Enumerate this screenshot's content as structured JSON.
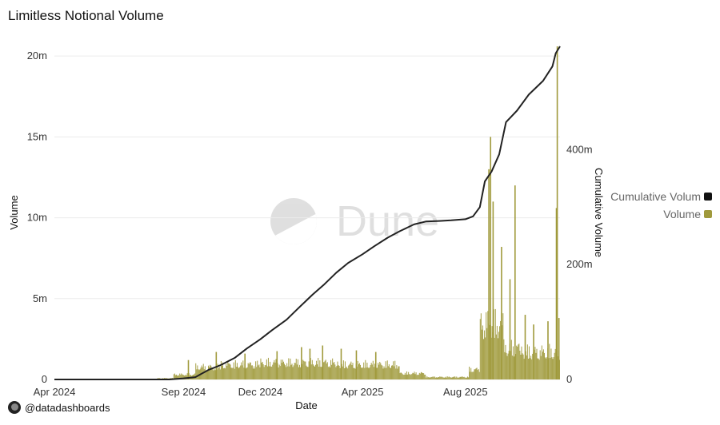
{
  "title": "Limitless Notional Volume",
  "credit": "@datadashboards",
  "watermark": "Dune",
  "colors": {
    "volume": "#a09a3c",
    "cumulative": "#222222",
    "grid": "#ececec"
  },
  "legend": [
    {
      "label": "Cumulative Volum",
      "color": "#111111"
    },
    {
      "label": "Volume",
      "color": "#a09a3c"
    }
  ],
  "chart_data": {
    "type": "bar",
    "x_start": "2024-04-01",
    "x_end": "2025-11-21",
    "xlabel": "Date",
    "ylabel_left": "Volume",
    "ylabel_right": "Cumulative Volume",
    "ylim_left": [
      0,
      20600000
    ],
    "ylim_right": [
      0,
      580000000
    ],
    "left_ticks": [
      {
        "value": 0,
        "label": "0"
      },
      {
        "value": 5000000,
        "label": "5m"
      },
      {
        "value": 10000000,
        "label": "10m"
      },
      {
        "value": 15000000,
        "label": "15m"
      },
      {
        "value": 20000000,
        "label": "20m"
      }
    ],
    "right_ticks": [
      {
        "value": 0,
        "label": "0"
      },
      {
        "value": 200000000,
        "label": "200m"
      },
      {
        "value": 400000000,
        "label": "400m"
      }
    ],
    "x_ticks": [
      {
        "date": "2024-04-01",
        "label": "Apr 2024"
      },
      {
        "date": "2024-09-01",
        "label": "Sep 2024"
      },
      {
        "date": "2024-12-01",
        "label": "Dec 2024"
      },
      {
        "date": "2025-04-01",
        "label": "Apr 2025"
      },
      {
        "date": "2025-08-01",
        "label": "Aug 2025"
      }
    ],
    "grid": true,
    "legend_position": "right",
    "series": [
      {
        "name": "Cumulative Volum",
        "type": "line",
        "axis": "right",
        "points": [
          [
            "2024-04-01",
            0
          ],
          [
            "2024-08-15",
            0
          ],
          [
            "2024-09-01",
            2000000
          ],
          [
            "2024-09-15",
            4000000
          ],
          [
            "2024-10-01",
            17000000
          ],
          [
            "2024-10-15",
            25000000
          ],
          [
            "2024-11-01",
            38000000
          ],
          [
            "2024-11-15",
            54000000
          ],
          [
            "2024-12-01",
            70000000
          ],
          [
            "2024-12-15",
            86000000
          ],
          [
            "2025-01-01",
            104000000
          ],
          [
            "2025-01-15",
            124000000
          ],
          [
            "2025-02-01",
            148000000
          ],
          [
            "2025-02-15",
            166000000
          ],
          [
            "2025-03-01",
            186000000
          ],
          [
            "2025-03-15",
            203000000
          ],
          [
            "2025-04-01",
            218000000
          ],
          [
            "2025-04-15",
            232000000
          ],
          [
            "2025-05-01",
            247000000
          ],
          [
            "2025-05-15",
            258000000
          ],
          [
            "2025-06-01",
            270000000
          ],
          [
            "2025-06-15",
            275000000
          ],
          [
            "2025-07-01",
            276000000
          ],
          [
            "2025-07-15",
            277000000
          ],
          [
            "2025-08-01",
            279000000
          ],
          [
            "2025-08-10",
            284000000
          ],
          [
            "2025-08-18",
            300000000
          ],
          [
            "2025-08-24",
            345000000
          ],
          [
            "2025-09-01",
            362000000
          ],
          [
            "2025-09-10",
            392000000
          ],
          [
            "2025-09-18",
            448000000
          ],
          [
            "2025-10-01",
            468000000
          ],
          [
            "2025-10-15",
            496000000
          ],
          [
            "2025-11-01",
            520000000
          ],
          [
            "2025-11-12",
            545000000
          ],
          [
            "2025-11-16",
            568000000
          ],
          [
            "2025-11-21",
            580000000
          ]
        ]
      },
      {
        "name": "Volume",
        "type": "bar",
        "axis": "left",
        "segments": [
          {
            "start": "2024-04-01",
            "end": "2024-08-01",
            "level": 0
          },
          {
            "start": "2024-08-01",
            "end": "2024-08-20",
            "level": 100000
          },
          {
            "start": "2024-08-20",
            "end": "2024-09-15",
            "level": 400000
          },
          {
            "start": "2024-09-15",
            "end": "2024-10-15",
            "level": 1000000
          },
          {
            "start": "2024-10-15",
            "end": "2024-12-01",
            "level": 1200000
          },
          {
            "start": "2024-12-01",
            "end": "2025-03-01",
            "level": 1350000
          },
          {
            "start": "2025-03-01",
            "end": "2025-05-15",
            "level": 1200000
          },
          {
            "start": "2025-05-15",
            "end": "2025-06-15",
            "level": 500000
          },
          {
            "start": "2025-06-15",
            "end": "2025-08-05",
            "level": 200000
          },
          {
            "start": "2025-08-05",
            "end": "2025-08-18",
            "level": 800000
          },
          {
            "start": "2025-08-18",
            "end": "2025-09-15",
            "level": 4500000
          },
          {
            "start": "2025-09-15",
            "end": "2025-10-05",
            "level": 2500000
          },
          {
            "start": "2025-10-05",
            "end": "2025-11-21",
            "level": 2200000
          }
        ],
        "spikes": [
          [
            "2024-09-06",
            1200000
          ],
          [
            "2024-10-09",
            1700000
          ],
          [
            "2024-11-12",
            1600000
          ],
          [
            "2024-12-20",
            1750000
          ],
          [
            "2025-01-18",
            2000000
          ],
          [
            "2025-01-28",
            1900000
          ],
          [
            "2025-02-12",
            2100000
          ],
          [
            "2025-03-06",
            1900000
          ],
          [
            "2025-03-24",
            1800000
          ],
          [
            "2025-04-16",
            1700000
          ],
          [
            "2025-08-28",
            13000000
          ],
          [
            "2025-08-30",
            15000000
          ],
          [
            "2025-09-02",
            11000000
          ],
          [
            "2025-09-12",
            8200000
          ],
          [
            "2025-09-22",
            6200000
          ],
          [
            "2025-09-28",
            12000000
          ],
          [
            "2025-10-10",
            4000000
          ],
          [
            "2025-10-20",
            3400000
          ],
          [
            "2025-11-06",
            3600000
          ],
          [
            "2025-11-16",
            10600000
          ],
          [
            "2025-11-17",
            20600000
          ],
          [
            "2025-11-19",
            3800000
          ]
        ]
      }
    ]
  }
}
